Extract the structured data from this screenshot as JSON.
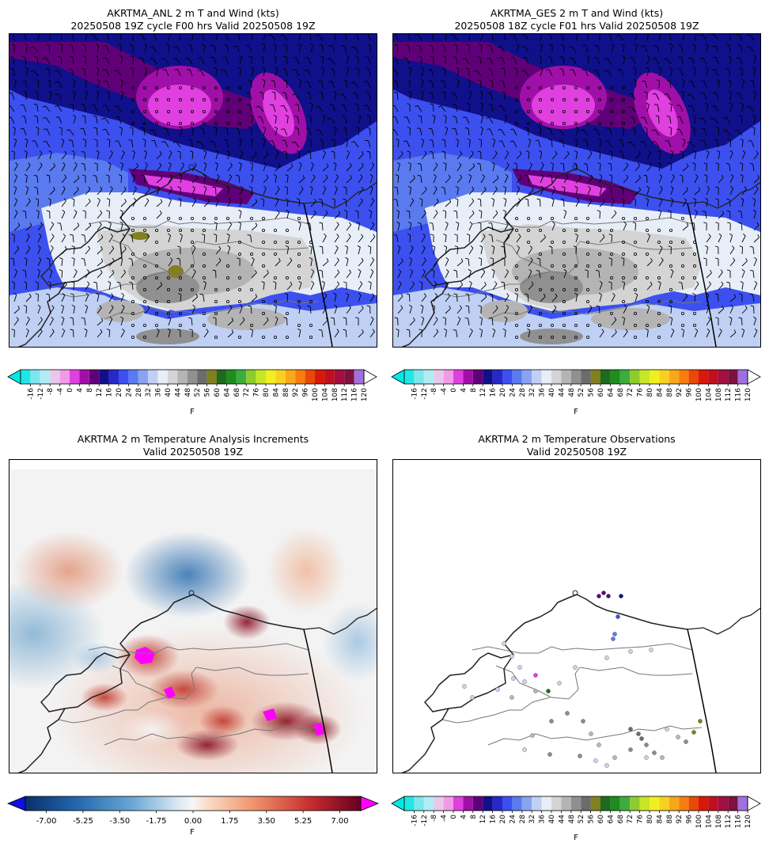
{
  "panels": {
    "anl": {
      "title_line1": "AKRTMA_ANL 2 m T and Wind (kts)",
      "title_line2": "20250508 19Z cycle F00 hrs Valid 20250508 19Z"
    },
    "ges": {
      "title_line1": "AKRTMA_GES 2 m T and Wind (kts)",
      "title_line2": "20250508 18Z cycle F01 hrs Valid 20250508 19Z"
    },
    "inc": {
      "title_line1": "AKRTMA 2 m Temperature Analysis Increments",
      "title_line2": "Valid 20250508 19Z"
    },
    "obs": {
      "title_line1": "AKRTMA 2 m Temperature Observations",
      "title_line2": "Valid 20250508 19Z"
    }
  },
  "temp_colorbar": {
    "unit": "F",
    "ticks": [
      "-16",
      "-12",
      "-8",
      "-4",
      "0",
      "4",
      "8",
      "12",
      "16",
      "20",
      "24",
      "28",
      "32",
      "36",
      "40",
      "44",
      "48",
      "52",
      "56",
      "60",
      "64",
      "68",
      "72",
      "76",
      "80",
      "84",
      "88",
      "92",
      "96",
      "100",
      "104",
      "108",
      "112",
      "116",
      "120"
    ],
    "colors": [
      "#22e6e6",
      "#7ce6ee",
      "#b0ecf4",
      "#e8c8e8",
      "#f09ae8",
      "#e040e0",
      "#a010a8",
      "#600078",
      "#10108a",
      "#2828c8",
      "#3c50f0",
      "#5a7af0",
      "#88a4f0",
      "#c0d0f4",
      "#e8eef8",
      "#d4d4d4",
      "#b4b4b4",
      "#909090",
      "#6c6c6c",
      "#808020",
      "#1e6a1e",
      "#1e8c1e",
      "#3cac3c",
      "#8ccc2c",
      "#c8e628",
      "#f0f020",
      "#f8d020",
      "#f8a818",
      "#f87c10",
      "#e84808",
      "#d81808",
      "#c01020",
      "#a01040",
      "#801040",
      "#a070e0"
    ],
    "low_extend": "#00e8e8",
    "high_extend": "#ffffff"
  },
  "inc_colorbar": {
    "unit": "F",
    "ticks": [
      "-7.00",
      "-5.25",
      "-3.50",
      "-1.75",
      "0.00",
      "1.75",
      "3.50",
      "5.25",
      "7.00"
    ],
    "low_extend": "#1010e0",
    "high_extend": "#ff00ff"
  },
  "observations": [
    {
      "temp_f": 36,
      "color": "#d0d0ee"
    },
    {
      "temp_f": 8,
      "color": "#600078"
    },
    {
      "temp_f": 12,
      "color": "#10108a"
    },
    {
      "temp_f": 20,
      "color": "#3c50f0"
    },
    {
      "temp_f": 24,
      "color": "#5a7af0"
    },
    {
      "temp_f": 40,
      "color": "#b8b8b8"
    },
    {
      "temp_f": 44,
      "color": "#8c8c8c"
    },
    {
      "temp_f": 48,
      "color": "#6c6c6c"
    },
    {
      "temp_f": 56,
      "color": "#808020"
    },
    {
      "temp_f": 60,
      "color": "#1e6a1e"
    },
    {
      "temp_f": 4,
      "color": "#e040e0"
    }
  ]
}
